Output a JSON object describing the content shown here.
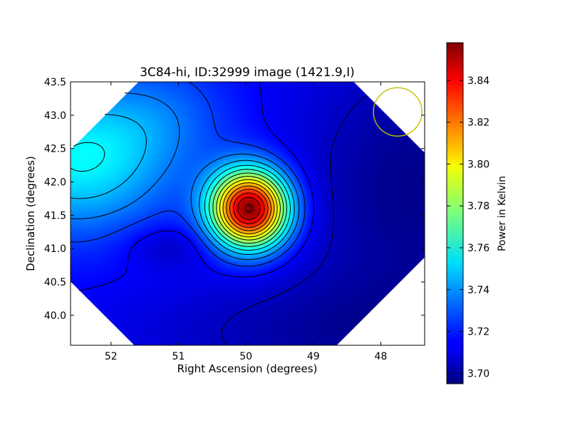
{
  "chart_data": {
    "type": "heatmap",
    "title": "3C84-hi, ID:32999 image (1421.9,I)",
    "xlabel": "Right Ascension (degrees)",
    "ylabel": "Declination (degrees)",
    "xlim": [
      52.6,
      47.35
    ],
    "ylim": [
      39.55,
      43.5
    ],
    "xticks": [
      {
        "value": 52,
        "label": "52"
      },
      {
        "value": 51,
        "label": "51"
      },
      {
        "value": 50,
        "label": "50"
      },
      {
        "value": 49,
        "label": "49"
      },
      {
        "value": 48,
        "label": "48"
      }
    ],
    "yticks": [
      {
        "value": 40.0,
        "label": "40.0"
      },
      {
        "value": 40.5,
        "label": "40.5"
      },
      {
        "value": 41.0,
        "label": "41.0"
      },
      {
        "value": 41.5,
        "label": "41.5"
      },
      {
        "value": 42.0,
        "label": "42.0"
      },
      {
        "value": 42.5,
        "label": "42.5"
      },
      {
        "value": 43.0,
        "label": "43.0"
      },
      {
        "value": 43.5,
        "label": "43.5"
      }
    ],
    "colorbar": {
      "label": "Power in Kelvin",
      "range": [
        3.695,
        3.858
      ],
      "colormap": "jet",
      "ticks": [
        {
          "value": 3.7,
          "label": "3.70"
        },
        {
          "value": 3.72,
          "label": "3.72"
        },
        {
          "value": 3.74,
          "label": "3.74"
        },
        {
          "value": 3.76,
          "label": "3.76"
        },
        {
          "value": 3.78,
          "label": "3.78"
        },
        {
          "value": 3.8,
          "label": "3.80"
        },
        {
          "value": 3.82,
          "label": "3.82"
        },
        {
          "value": 3.84,
          "label": "3.84"
        }
      ]
    },
    "features": [
      {
        "ra": 49.95,
        "dec": 41.58,
        "value": 3.858
      },
      {
        "ra": 52.5,
        "dec": 42.25,
        "value": 3.755
      },
      {
        "ra": 51.0,
        "dec": 41.0,
        "value": 3.705
      },
      {
        "ra": 47.5,
        "dec": 41.9,
        "value": 3.7
      }
    ],
    "beam_circle": {
      "ra": 47.75,
      "dec": 43.05,
      "color": "#bfbf00"
    },
    "colors": {
      "contour": "#000000",
      "beam": "#bfbf00"
    }
  }
}
